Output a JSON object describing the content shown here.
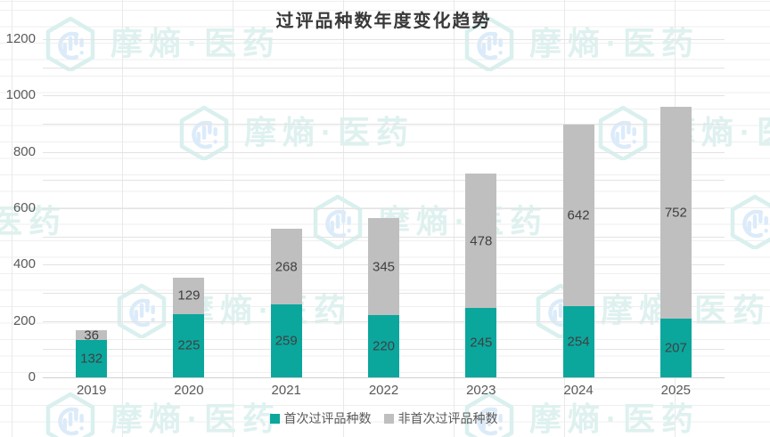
{
  "title": "过评品种数年度变化趋势",
  "watermark": {
    "text": "摩熵·医药"
  },
  "legend": [
    {
      "label": "首次过评品种数",
      "color": "#0ba79d"
    },
    {
      "label": "非首次过评品种数",
      "color": "#bfbfbf"
    }
  ],
  "chart_data": {
    "type": "bar",
    "stacked": true,
    "title": "过评品种数年度变化趋势",
    "xlabel": "",
    "ylabel": "",
    "categories": [
      "2019",
      "2020",
      "2021",
      "2022",
      "2023",
      "2024",
      "2025"
    ],
    "series": [
      {
        "name": "首次过评品种数",
        "color": "#0ba79d",
        "values": [
          132,
          225,
          259,
          220,
          245,
          254,
          207
        ]
      },
      {
        "name": "非首次过评品种数",
        "color": "#bfbfbf",
        "values": [
          36,
          129,
          268,
          345,
          478,
          642,
          752
        ]
      }
    ],
    "totals": [
      168,
      354,
      527,
      565,
      723,
      896,
      959
    ],
    "ylim": [
      0,
      1200
    ],
    "yticks": [
      0,
      200,
      400,
      600,
      800,
      1000,
      1200
    ],
    "ytick_step": 200,
    "grid_step": 100,
    "grid": true,
    "data_labels": true,
    "legend_position": "bottom"
  }
}
